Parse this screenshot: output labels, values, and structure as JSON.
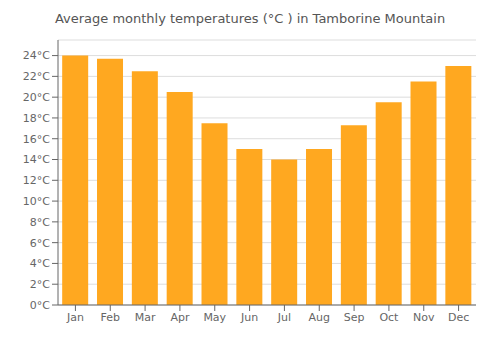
{
  "chart_data": {
    "type": "bar",
    "title": "Average monthly temperatures (°C ) in Tamborine Mountain",
    "categories": [
      "Jan",
      "Feb",
      "Mar",
      "Apr",
      "May",
      "Jun",
      "Jul",
      "Aug",
      "Sep",
      "Oct",
      "Nov",
      "Dec"
    ],
    "values": [
      24.0,
      23.7,
      22.5,
      20.5,
      17.5,
      15.0,
      14.0,
      15.0,
      17.3,
      19.5,
      21.5,
      23.0
    ],
    "color": "#FFA820",
    "ylim": [
      0,
      25.5
    ],
    "yticks": [
      {
        "value": 0,
        "label": "0°C"
      },
      {
        "value": 2,
        "label": "2°C"
      },
      {
        "value": 4,
        "label": "4°C"
      },
      {
        "value": 6,
        "label": "6°C"
      },
      {
        "value": 8,
        "label": "8°C"
      },
      {
        "value": 10,
        "label": "10°C"
      },
      {
        "value": 12,
        "label": "12°C"
      },
      {
        "value": 14,
        "label": "14°C"
      },
      {
        "value": 16,
        "label": "16°C"
      },
      {
        "value": 18,
        "label": "18°C"
      },
      {
        "value": 20,
        "label": "20°C"
      },
      {
        "value": 22,
        "label": "22°C"
      },
      {
        "value": 24,
        "label": "24°C"
      }
    ],
    "grid": true
  }
}
